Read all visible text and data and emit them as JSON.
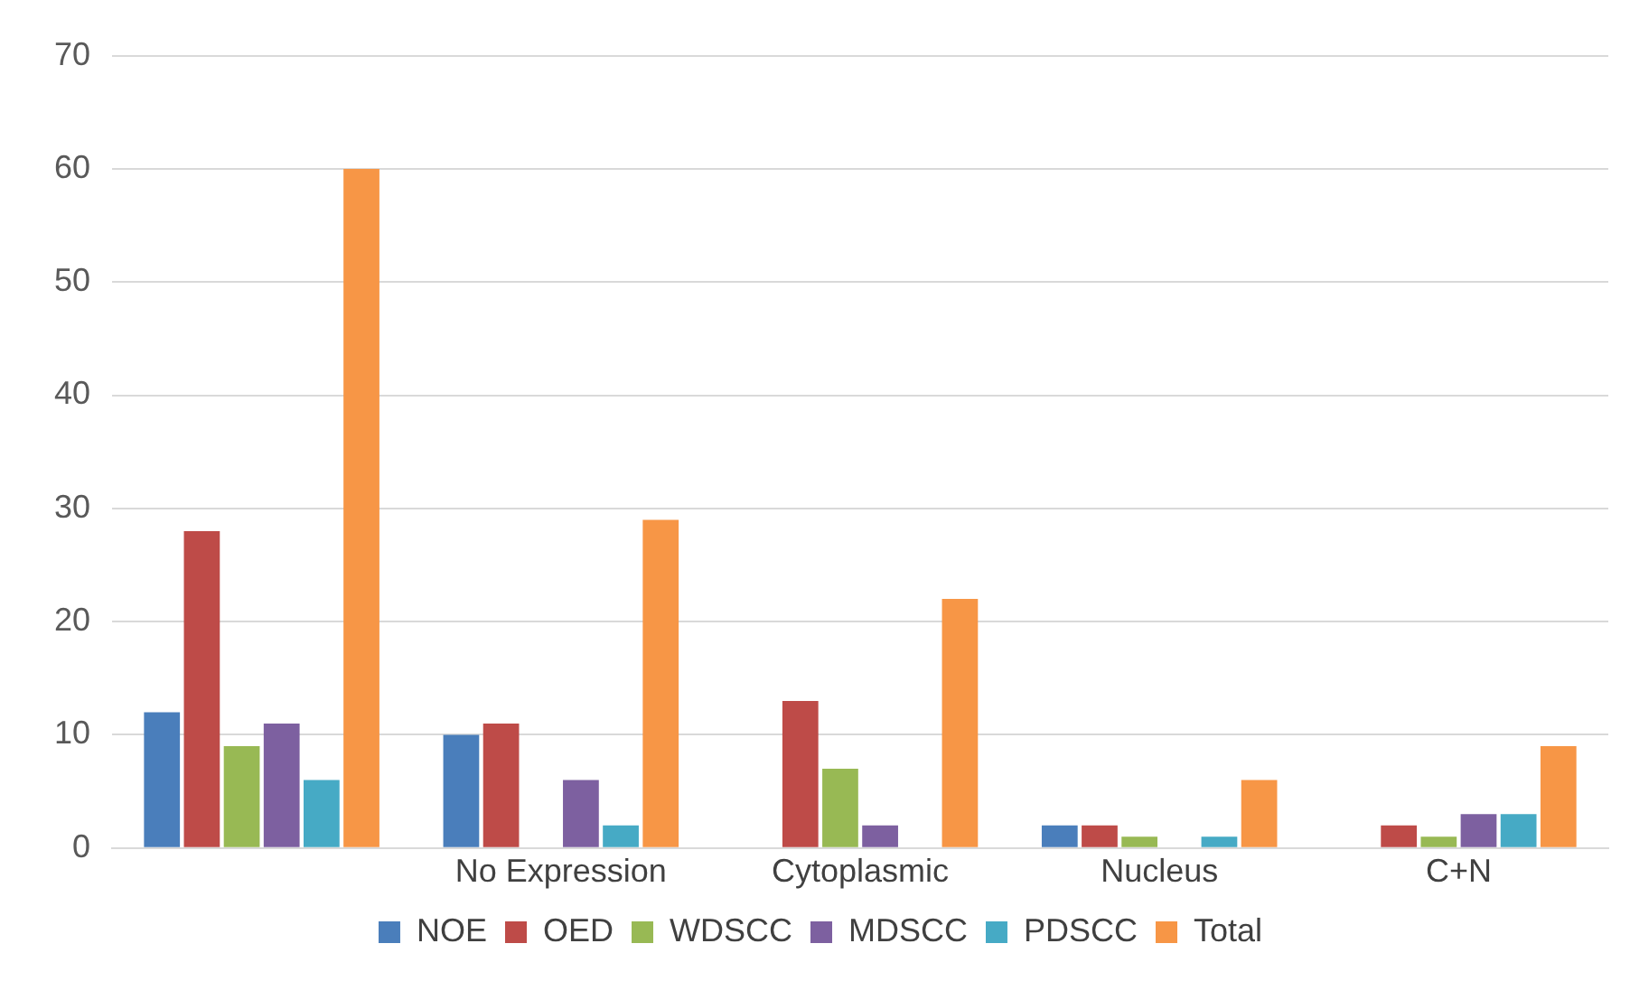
{
  "chart_data": {
    "type": "bar",
    "categories": [
      null,
      "No Expression",
      "Cytoplasmic",
      "Nucleus",
      "C+N"
    ],
    "series": [
      {
        "name": "NOE",
        "color": "#4a7ebb",
        "values": [
          12,
          10,
          0,
          2,
          0
        ]
      },
      {
        "name": "OED",
        "color": "#be4b48",
        "values": [
          28,
          11,
          13,
          2,
          2
        ]
      },
      {
        "name": "WDSCC",
        "color": "#98b954",
        "values": [
          9,
          0,
          7,
          1,
          1
        ]
      },
      {
        "name": "MDSCC",
        "color": "#7d60a0",
        "values": [
          11,
          6,
          2,
          0,
          3
        ]
      },
      {
        "name": "PDSCC",
        "color": "#46aac5",
        "values": [
          6,
          2,
          0,
          1,
          3
        ]
      },
      {
        "name": "Total",
        "color": "#f79646",
        "values": [
          60,
          29,
          22,
          6,
          9
        ]
      }
    ],
    "ylim": [
      0,
      70
    ],
    "yticks": [
      0,
      10,
      20,
      30,
      40,
      50,
      60,
      70
    ],
    "grid": "y",
    "legend": "bottom"
  }
}
